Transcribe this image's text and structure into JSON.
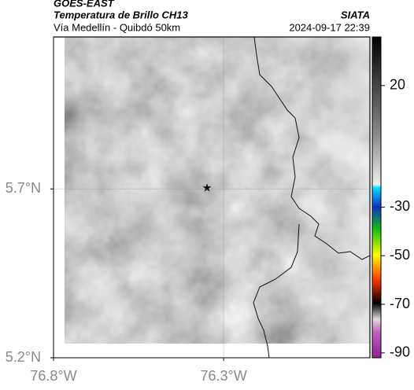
{
  "header": {
    "source": "GOES-EAST",
    "title": "Temperatura de Brillo CH13",
    "subtitle": "Vía Medellín - Quibdó 50km",
    "org": "SIATA",
    "datetime": "2024-09-17 22:39"
  },
  "map": {
    "xlim": [
      -76.8,
      -75.87
    ],
    "ylim": [
      5.2,
      6.15
    ],
    "xticks": [
      {
        "value": -76.8,
        "label": "76.8°W"
      },
      {
        "value": -76.3,
        "label": "76.3°W"
      }
    ],
    "yticks": [
      {
        "value": 5.7,
        "label": "5.7°N"
      },
      {
        "value": 5.2,
        "label": "5.2°N"
      }
    ]
  },
  "colorbar": {
    "lim": [
      -92,
      40
    ],
    "ticks": [
      20,
      -30,
      -50,
      -70,
      -90
    ]
  }
}
